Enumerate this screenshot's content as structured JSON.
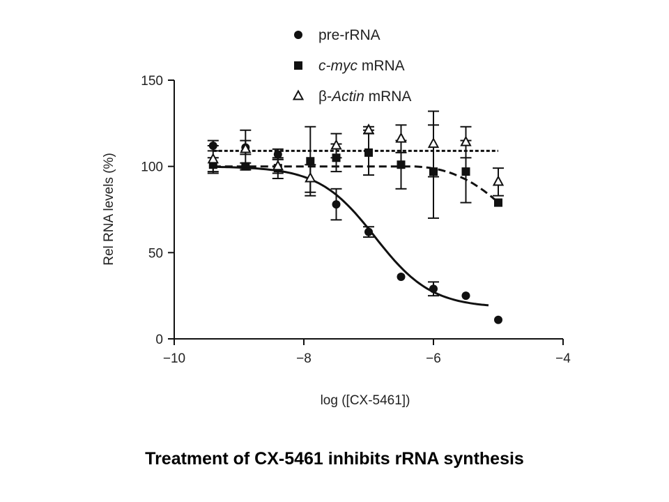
{
  "caption": "Treatment of CX-5461 inhibits rRNA synthesis",
  "chart_data": {
    "type": "scatter",
    "xlabel": "log ([CX-5461])",
    "ylabel": "Rel RNA levels (%)",
    "xlim": [
      -10,
      -4
    ],
    "ylim": [
      0,
      150
    ],
    "xticks": [
      -10,
      -8,
      -6,
      -4
    ],
    "xtick_labels": [
      "−10",
      "−8",
      "−6",
      "−4"
    ],
    "yticks": [
      0,
      50,
      100,
      150
    ],
    "ytick_labels": [
      "0",
      "50",
      "100",
      "150"
    ],
    "legend_position": "top-center",
    "grid": false,
    "series": [
      {
        "name": "pre-rRNA",
        "name_prefix": "",
        "name_italic": "",
        "name_suffix": "pre-rRNA",
        "marker": "circle",
        "x": [
          -9.4,
          -8.9,
          -8.4,
          -7.5,
          -7.0,
          -6.5,
          -6.0,
          -5.5,
          -5.0
        ],
        "y": [
          112,
          111,
          107,
          78,
          62,
          36,
          29,
          25,
          11
        ],
        "err": [
          3,
          4,
          3,
          9,
          3,
          0,
          4,
          0,
          0
        ],
        "fit": {
          "type": "sigmoid",
          "top": 100,
          "bottom": 18,
          "logEC50": -6.9,
          "hill": 1.0,
          "x_range": [
            -9.4,
            -5.15
          ],
          "style": "solid"
        }
      },
      {
        "name": "c-myc mRNA",
        "name_prefix": "",
        "name_italic": "c-myc",
        "name_suffix": " mRNA",
        "marker": "square",
        "x": [
          -9.4,
          -8.9,
          -8.4,
          -7.9,
          -7.5,
          -7.0,
          -6.5,
          -6.0,
          -5.5,
          -5.0
        ],
        "y": [
          101,
          100,
          99,
          103,
          105,
          108,
          101,
          97,
          97,
          79
        ],
        "err": [
          4,
          2,
          6,
          20,
          8,
          13,
          14,
          27,
          18,
          0
        ],
        "fit": {
          "type": "drop",
          "base": 100,
          "x_range": [
            -9.4,
            -5.0
          ],
          "style": "dashed"
        }
      },
      {
        "name": "β-Actin mRNA",
        "name_prefix": "β-",
        "name_italic": "Actin",
        "name_suffix": " mRNA",
        "marker": "triangle-open",
        "x": [
          -9.4,
          -8.9,
          -8.4,
          -7.9,
          -7.5,
          -7.0,
          -6.5,
          -6.0,
          -5.5,
          -5.0
        ],
        "y": [
          104,
          110,
          100,
          93,
          112,
          121,
          116,
          113,
          114,
          91
        ],
        "err": [
          8,
          11,
          4,
          8,
          7,
          2,
          8,
          19,
          9,
          8
        ],
        "fit": {
          "type": "flat",
          "value": 109,
          "x_range": [
            -9.4,
            -5.0
          ],
          "style": "dotted"
        }
      }
    ]
  }
}
